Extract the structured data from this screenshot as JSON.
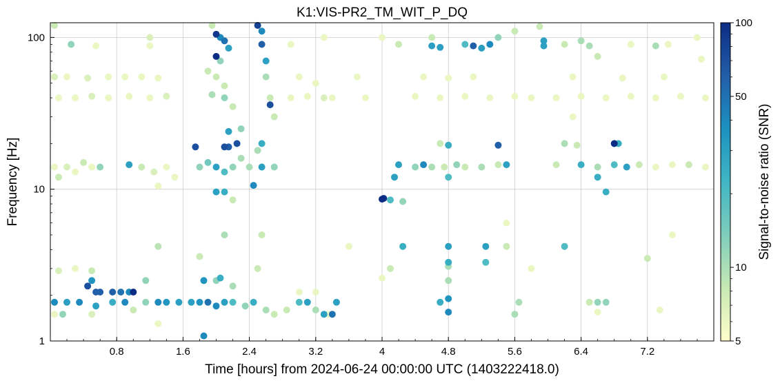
{
  "chart_data": {
    "type": "scatter",
    "title": "K1:VIS-PR2_TM_WIT_P_DQ",
    "xlabel": "Time [hours] from 2024-06-24 00:00:00 UTC (1403222418.0)",
    "ylabel": "Frequency [Hz]",
    "xlim": [
      0.0,
      8.0
    ],
    "ylim": [
      1,
      125
    ],
    "yscale": "log",
    "x_ticks": [
      "0.8",
      "1.6",
      "2.4",
      "3.2",
      "4",
      "4.8",
      "5.6",
      "6.4",
      "7.2"
    ],
    "y_ticks": [
      "1",
      "10",
      "100"
    ],
    "grid": true,
    "colorbar": {
      "label": "Signal-to-noise ratio (SNR)",
      "scale": "log",
      "range": [
        5,
        100
      ],
      "ticks": [
        "5",
        "10",
        "50",
        "100"
      ],
      "colormap": [
        "#ffffcc",
        "#c7e9b4",
        "#7fcdbb",
        "#41b6c4",
        "#1d91c0",
        "#225ea8",
        "#0c2c84"
      ]
    },
    "points": [
      {
        "x": 0.05,
        "y": 120,
        "snr": 8
      },
      {
        "x": 0.05,
        "y": 55,
        "snr": 7
      },
      {
        "x": 0.1,
        "y": 40,
        "snr": 6
      },
      {
        "x": 0.05,
        "y": 14,
        "snr": 6
      },
      {
        "x": 0.1,
        "y": 12,
        "snr": 8
      },
      {
        "x": 0.2,
        "y": 14,
        "snr": 7
      },
      {
        "x": 0.3,
        "y": 13,
        "snr": 6
      },
      {
        "x": 0.4,
        "y": 15,
        "snr": 8
      },
      {
        "x": 0.5,
        "y": 14,
        "snr": 6
      },
      {
        "x": 0.6,
        "y": 14,
        "snr": 12
      },
      {
        "x": 0.25,
        "y": 90,
        "snr": 12
      },
      {
        "x": 0.55,
        "y": 88,
        "snr": 6
      },
      {
        "x": 0.2,
        "y": 55,
        "snr": 6
      },
      {
        "x": 0.45,
        "y": 54,
        "snr": 7
      },
      {
        "x": 0.7,
        "y": 55,
        "snr": 6
      },
      {
        "x": 0.9,
        "y": 55,
        "snr": 6
      },
      {
        "x": 0.3,
        "y": 40,
        "snr": 6
      },
      {
        "x": 0.5,
        "y": 41,
        "snr": 7
      },
      {
        "x": 0.7,
        "y": 40,
        "snr": 6
      },
      {
        "x": 0.95,
        "y": 41,
        "snr": 6
      },
      {
        "x": 1.2,
        "y": 40,
        "snr": 6
      },
      {
        "x": 1.4,
        "y": 41,
        "snr": 7
      },
      {
        "x": 1.1,
        "y": 55,
        "snr": 6
      },
      {
        "x": 1.3,
        "y": 54,
        "snr": 6
      },
      {
        "x": 1.2,
        "y": 88,
        "snr": 6
      },
      {
        "x": 1.2,
        "y": 100,
        "snr": 7
      },
      {
        "x": 0.95,
        "y": 14.5,
        "snr": 30
      },
      {
        "x": 1.1,
        "y": 14,
        "snr": 8
      },
      {
        "x": 1.25,
        "y": 13,
        "snr": 7
      },
      {
        "x": 1.4,
        "y": 14,
        "snr": 6
      },
      {
        "x": 1.5,
        "y": 12,
        "snr": 6
      },
      {
        "x": 1.3,
        "y": 10.5,
        "snr": 6
      },
      {
        "x": 0.05,
        "y": 1.8,
        "snr": 40
      },
      {
        "x": 0.2,
        "y": 1.8,
        "snr": 30
      },
      {
        "x": 0.35,
        "y": 1.8,
        "snr": 40
      },
      {
        "x": 0.45,
        "y": 2.3,
        "snr": 70
      },
      {
        "x": 0.5,
        "y": 2.5,
        "snr": 35
      },
      {
        "x": 0.55,
        "y": 2.1,
        "snr": 60
      },
      {
        "x": 0.6,
        "y": 2.1,
        "snr": 60
      },
      {
        "x": 0.75,
        "y": 2.1,
        "snr": 60
      },
      {
        "x": 0.85,
        "y": 2.1,
        "snr": 50
      },
      {
        "x": 0.95,
        "y": 2.1,
        "snr": 40
      },
      {
        "x": 1.0,
        "y": 2.1,
        "snr": 100
      },
      {
        "x": 0.55,
        "y": 1.7,
        "snr": 30
      },
      {
        "x": 0.75,
        "y": 1.8,
        "snr": 25
      },
      {
        "x": 0.9,
        "y": 1.8,
        "snr": 40
      },
      {
        "x": 1.0,
        "y": 1.6,
        "snr": 8
      },
      {
        "x": 1.15,
        "y": 1.8,
        "snr": 12
      },
      {
        "x": 1.3,
        "y": 1.8,
        "snr": 40
      },
      {
        "x": 1.4,
        "y": 1.8,
        "snr": 35
      },
      {
        "x": 1.55,
        "y": 1.8,
        "snr": 30
      },
      {
        "x": 1.7,
        "y": 1.8,
        "snr": 30
      },
      {
        "x": 1.8,
        "y": 1.8,
        "snr": 35
      },
      {
        "x": 0.1,
        "y": 2.9,
        "snr": 7
      },
      {
        "x": 0.3,
        "y": 3.0,
        "snr": 6
      },
      {
        "x": 0.5,
        "y": 2.9,
        "snr": 8
      },
      {
        "x": 1.15,
        "y": 2.5,
        "snr": 12
      },
      {
        "x": 1.3,
        "y": 4.2,
        "snr": 9
      },
      {
        "x": 0.05,
        "y": 1.5,
        "snr": 6
      },
      {
        "x": 0.15,
        "y": 1.5,
        "snr": 12
      },
      {
        "x": 0.5,
        "y": 1.5,
        "snr": 7
      },
      {
        "x": 1.3,
        "y": 1.3,
        "snr": 6
      },
      {
        "x": 1.95,
        "y": 120,
        "snr": 8
      },
      {
        "x": 2.0,
        "y": 105,
        "snr": 90
      },
      {
        "x": 2.05,
        "y": 100,
        "snr": 40
      },
      {
        "x": 2.1,
        "y": 95,
        "snr": 50
      },
      {
        "x": 2.15,
        "y": 85,
        "snr": 30
      },
      {
        "x": 2.0,
        "y": 75,
        "snr": 100
      },
      {
        "x": 2.05,
        "y": 70,
        "snr": 12
      },
      {
        "x": 1.9,
        "y": 60,
        "snr": 8
      },
      {
        "x": 2.0,
        "y": 55,
        "snr": 8
      },
      {
        "x": 2.1,
        "y": 48,
        "snr": 8
      },
      {
        "x": 1.95,
        "y": 42,
        "snr": 10
      },
      {
        "x": 2.1,
        "y": 40,
        "snr": 12
      },
      {
        "x": 2.2,
        "y": 35,
        "snr": 8
      },
      {
        "x": 2.5,
        "y": 120,
        "snr": 80
      },
      {
        "x": 2.55,
        "y": 110,
        "snr": 40
      },
      {
        "x": 2.55,
        "y": 90,
        "snr": 60
      },
      {
        "x": 2.6,
        "y": 70,
        "snr": 30
      },
      {
        "x": 2.6,
        "y": 55,
        "snr": 10
      },
      {
        "x": 2.65,
        "y": 40,
        "snr": 8
      },
      {
        "x": 2.65,
        "y": 36,
        "snr": 70
      },
      {
        "x": 2.7,
        "y": 30,
        "snr": 8
      },
      {
        "x": 1.75,
        "y": 19,
        "snr": 70
      },
      {
        "x": 2.1,
        "y": 19,
        "snr": 70
      },
      {
        "x": 2.15,
        "y": 19,
        "snr": 60
      },
      {
        "x": 2.25,
        "y": 20,
        "snr": 70
      },
      {
        "x": 2.15,
        "y": 24,
        "snr": 30
      },
      {
        "x": 2.3,
        "y": 25,
        "snr": 12
      },
      {
        "x": 2.55,
        "y": 20,
        "snr": 25
      },
      {
        "x": 2.5,
        "y": 18,
        "snr": 10
      },
      {
        "x": 2.3,
        "y": 16,
        "snr": 10
      },
      {
        "x": 1.8,
        "y": 14,
        "snr": 12
      },
      {
        "x": 1.9,
        "y": 15,
        "snr": 15
      },
      {
        "x": 2.0,
        "y": 14,
        "snr": 30
      },
      {
        "x": 2.1,
        "y": 13,
        "snr": 20
      },
      {
        "x": 2.2,
        "y": 14,
        "snr": 12
      },
      {
        "x": 2.4,
        "y": 14,
        "snr": 10
      },
      {
        "x": 2.55,
        "y": 14,
        "snr": 30
      },
      {
        "x": 2.7,
        "y": 14,
        "snr": 12
      },
      {
        "x": 2.0,
        "y": 9.6,
        "snr": 30
      },
      {
        "x": 2.1,
        "y": 9.6,
        "snr": 25
      },
      {
        "x": 2.45,
        "y": 10.6,
        "snr": 40
      },
      {
        "x": 2.2,
        "y": 8.5,
        "snr": 8
      },
      {
        "x": 2.1,
        "y": 5.0,
        "snr": 10
      },
      {
        "x": 1.8,
        "y": 3.6,
        "snr": 8
      },
      {
        "x": 2.55,
        "y": 5.0,
        "snr": 8
      },
      {
        "x": 2.5,
        "y": 3.0,
        "snr": 8
      },
      {
        "x": 1.85,
        "y": 2.5,
        "snr": 35
      },
      {
        "x": 2.0,
        "y": 2.5,
        "snr": 12
      },
      {
        "x": 2.05,
        "y": 2.6,
        "snr": 25
      },
      {
        "x": 2.2,
        "y": 2.3,
        "snr": 10
      },
      {
        "x": 1.9,
        "y": 1.8,
        "snr": 50
      },
      {
        "x": 2.0,
        "y": 1.7,
        "snr": 40
      },
      {
        "x": 2.1,
        "y": 1.8,
        "snr": 30
      },
      {
        "x": 2.2,
        "y": 1.8,
        "snr": 20
      },
      {
        "x": 2.35,
        "y": 1.7,
        "snr": 12
      },
      {
        "x": 2.45,
        "y": 1.8,
        "snr": 25
      },
      {
        "x": 2.6,
        "y": 1.6,
        "snr": 10
      },
      {
        "x": 2.7,
        "y": 1.5,
        "snr": 8
      },
      {
        "x": 2.85,
        "y": 1.6,
        "snr": 8
      },
      {
        "x": 3.0,
        "y": 1.8,
        "snr": 20
      },
      {
        "x": 3.1,
        "y": 1.8,
        "snr": 30
      },
      {
        "x": 3.2,
        "y": 1.6,
        "snr": 10
      },
      {
        "x": 3.3,
        "y": 1.5,
        "snr": 30
      },
      {
        "x": 3.4,
        "y": 1.5,
        "snr": 50
      },
      {
        "x": 3.45,
        "y": 1.8,
        "snr": 30
      },
      {
        "x": 3.35,
        "y": 1.5,
        "snr": 6
      },
      {
        "x": 1.85,
        "y": 1.08,
        "snr": 40
      },
      {
        "x": 3.0,
        "y": 2.1,
        "snr": 6
      },
      {
        "x": 3.2,
        "y": 2.1,
        "snr": 6
      },
      {
        "x": 2.9,
        "y": 40,
        "snr": 6
      },
      {
        "x": 3.1,
        "y": 41,
        "snr": 6
      },
      {
        "x": 3.3,
        "y": 40,
        "snr": 7
      },
      {
        "x": 3.4,
        "y": 40,
        "snr": 6
      },
      {
        "x": 3.0,
        "y": 55,
        "snr": 6
      },
      {
        "x": 3.2,
        "y": 50,
        "snr": 6
      },
      {
        "x": 2.9,
        "y": 90,
        "snr": 6
      },
      {
        "x": 3.3,
        "y": 100,
        "snr": 6
      },
      {
        "x": 3.6,
        "y": 4.2,
        "snr": 6
      },
      {
        "x": 3.8,
        "y": 40,
        "snr": 6
      },
      {
        "x": 3.7,
        "y": 55,
        "snr": 6
      },
      {
        "x": 4.0,
        "y": 8.6,
        "snr": 100
      },
      {
        "x": 4.02,
        "y": 8.7,
        "snr": 90
      },
      {
        "x": 4.1,
        "y": 8.5,
        "snr": 20
      },
      {
        "x": 4.25,
        "y": 8.3,
        "snr": 12
      },
      {
        "x": 4.25,
        "y": 4.2,
        "snr": 25
      },
      {
        "x": 4.1,
        "y": 3.0,
        "snr": 8
      },
      {
        "x": 4.0,
        "y": 2.6,
        "snr": 6
      },
      {
        "x": 4.0,
        "y": 100,
        "snr": 6
      },
      {
        "x": 4.2,
        "y": 90,
        "snr": 8
      },
      {
        "x": 4.15,
        "y": 12,
        "snr": 30
      },
      {
        "x": 4.2,
        "y": 14.5,
        "snr": 30
      },
      {
        "x": 4.4,
        "y": 14,
        "snr": 12
      },
      {
        "x": 4.5,
        "y": 14.5,
        "snr": 40
      },
      {
        "x": 4.6,
        "y": 14,
        "snr": 10
      },
      {
        "x": 4.75,
        "y": 14,
        "snr": 8
      },
      {
        "x": 4.9,
        "y": 14.5,
        "snr": 12
      },
      {
        "x": 5.0,
        "y": 14,
        "snr": 8
      },
      {
        "x": 5.2,
        "y": 14,
        "snr": 10
      },
      {
        "x": 5.4,
        "y": 14.5,
        "snr": 8
      },
      {
        "x": 5.5,
        "y": 14.5,
        "snr": 30
      },
      {
        "x": 4.8,
        "y": 12,
        "snr": 20
      },
      {
        "x": 4.8,
        "y": 19.5,
        "snr": 25
      },
      {
        "x": 5.4,
        "y": 19.5,
        "snr": 60
      },
      {
        "x": 4.7,
        "y": 20,
        "snr": 8
      },
      {
        "x": 4.6,
        "y": 100,
        "snr": 8
      },
      {
        "x": 4.6,
        "y": 88,
        "snr": 30
      },
      {
        "x": 4.7,
        "y": 86,
        "snr": 30
      },
      {
        "x": 5.0,
        "y": 90,
        "snr": 20
      },
      {
        "x": 5.1,
        "y": 88,
        "snr": 60
      },
      {
        "x": 5.2,
        "y": 85,
        "snr": 30
      },
      {
        "x": 5.3,
        "y": 90,
        "snr": 40
      },
      {
        "x": 5.95,
        "y": 95,
        "snr": 30
      },
      {
        "x": 5.95,
        "y": 88,
        "snr": 30
      },
      {
        "x": 5.4,
        "y": 100,
        "snr": 12
      },
      {
        "x": 5.6,
        "y": 110,
        "snr": 8
      },
      {
        "x": 5.9,
        "y": 118,
        "snr": 8
      },
      {
        "x": 4.5,
        "y": 55,
        "snr": 6
      },
      {
        "x": 4.8,
        "y": 54,
        "snr": 6
      },
      {
        "x": 5.1,
        "y": 55,
        "snr": 6
      },
      {
        "x": 4.4,
        "y": 41,
        "snr": 6
      },
      {
        "x": 4.7,
        "y": 40,
        "snr": 6
      },
      {
        "x": 5.0,
        "y": 41,
        "snr": 6
      },
      {
        "x": 5.3,
        "y": 40,
        "snr": 6
      },
      {
        "x": 5.6,
        "y": 41,
        "snr": 6
      },
      {
        "x": 5.8,
        "y": 40,
        "snr": 6
      },
      {
        "x": 4.8,
        "y": 4.2,
        "snr": 30
      },
      {
        "x": 4.8,
        "y": 3.3,
        "snr": 25
      },
      {
        "x": 4.8,
        "y": 3.1,
        "snr": 10
      },
      {
        "x": 4.8,
        "y": 2.5,
        "snr": 10
      },
      {
        "x": 4.8,
        "y": 1.9,
        "snr": 35
      },
      {
        "x": 4.8,
        "y": 1.55,
        "snr": 40
      },
      {
        "x": 4.7,
        "y": 1.8,
        "snr": 25
      },
      {
        "x": 5.25,
        "y": 4.2,
        "snr": 30
      },
      {
        "x": 5.25,
        "y": 3.3,
        "snr": 20
      },
      {
        "x": 5.5,
        "y": 4.2,
        "snr": 8
      },
      {
        "x": 5.8,
        "y": 3.0,
        "snr": 6
      },
      {
        "x": 5.6,
        "y": 1.5,
        "snr": 10
      },
      {
        "x": 5.65,
        "y": 1.8,
        "snr": 10
      },
      {
        "x": 5.5,
        "y": 6.0,
        "snr": 6
      },
      {
        "x": 6.2,
        "y": 20,
        "snr": 10
      },
      {
        "x": 6.35,
        "y": 19.5,
        "snr": 8
      },
      {
        "x": 6.1,
        "y": 14.5,
        "snr": 8
      },
      {
        "x": 6.4,
        "y": 14.5,
        "snr": 25
      },
      {
        "x": 6.6,
        "y": 14,
        "snr": 10
      },
      {
        "x": 6.8,
        "y": 14.5,
        "snr": 20
      },
      {
        "x": 6.95,
        "y": 14,
        "snr": 30
      },
      {
        "x": 7.1,
        "y": 14.5,
        "snr": 8
      },
      {
        "x": 7.3,
        "y": 14,
        "snr": 6
      },
      {
        "x": 7.5,
        "y": 14.5,
        "snr": 6
      },
      {
        "x": 7.7,
        "y": 14.5,
        "snr": 8
      },
      {
        "x": 7.9,
        "y": 14,
        "snr": 6
      },
      {
        "x": 6.8,
        "y": 20,
        "snr": 100
      },
      {
        "x": 6.85,
        "y": 20,
        "snr": 25
      },
      {
        "x": 6.6,
        "y": 12,
        "snr": 25
      },
      {
        "x": 6.7,
        "y": 9.6,
        "snr": 25
      },
      {
        "x": 6.2,
        "y": 4.2,
        "snr": 20
      },
      {
        "x": 7.2,
        "y": 3.5,
        "snr": 8
      },
      {
        "x": 6.5,
        "y": 1.8,
        "snr": 8
      },
      {
        "x": 6.6,
        "y": 1.8,
        "snr": 12
      },
      {
        "x": 6.7,
        "y": 1.8,
        "snr": 12
      },
      {
        "x": 6.6,
        "y": 1.55,
        "snr": 6
      },
      {
        "x": 7.35,
        "y": 1.6,
        "snr": 6
      },
      {
        "x": 7.5,
        "y": 5.0,
        "snr": 6
      },
      {
        "x": 6.1,
        "y": 40,
        "snr": 6
      },
      {
        "x": 6.4,
        "y": 41,
        "snr": 6
      },
      {
        "x": 6.7,
        "y": 40,
        "snr": 6
      },
      {
        "x": 7.0,
        "y": 41,
        "snr": 6
      },
      {
        "x": 7.3,
        "y": 40,
        "snr": 6
      },
      {
        "x": 7.6,
        "y": 41,
        "snr": 6
      },
      {
        "x": 7.9,
        "y": 40,
        "snr": 6
      },
      {
        "x": 6.3,
        "y": 55,
        "snr": 6
      },
      {
        "x": 6.9,
        "y": 54,
        "snr": 6
      },
      {
        "x": 7.4,
        "y": 55,
        "snr": 6
      },
      {
        "x": 7.85,
        "y": 72,
        "snr": 6
      },
      {
        "x": 6.2,
        "y": 90,
        "snr": 8
      },
      {
        "x": 6.4,
        "y": 95,
        "snr": 10
      },
      {
        "x": 6.5,
        "y": 88,
        "snr": 10
      },
      {
        "x": 7.0,
        "y": 90,
        "snr": 6
      },
      {
        "x": 7.3,
        "y": 88,
        "snr": 10
      },
      {
        "x": 7.45,
        "y": 90,
        "snr": 6
      },
      {
        "x": 7.8,
        "y": 100,
        "snr": 6
      },
      {
        "x": 6.6,
        "y": 75,
        "snr": 8
      },
      {
        "x": 6.3,
        "y": 30,
        "snr": 6
      }
    ]
  }
}
